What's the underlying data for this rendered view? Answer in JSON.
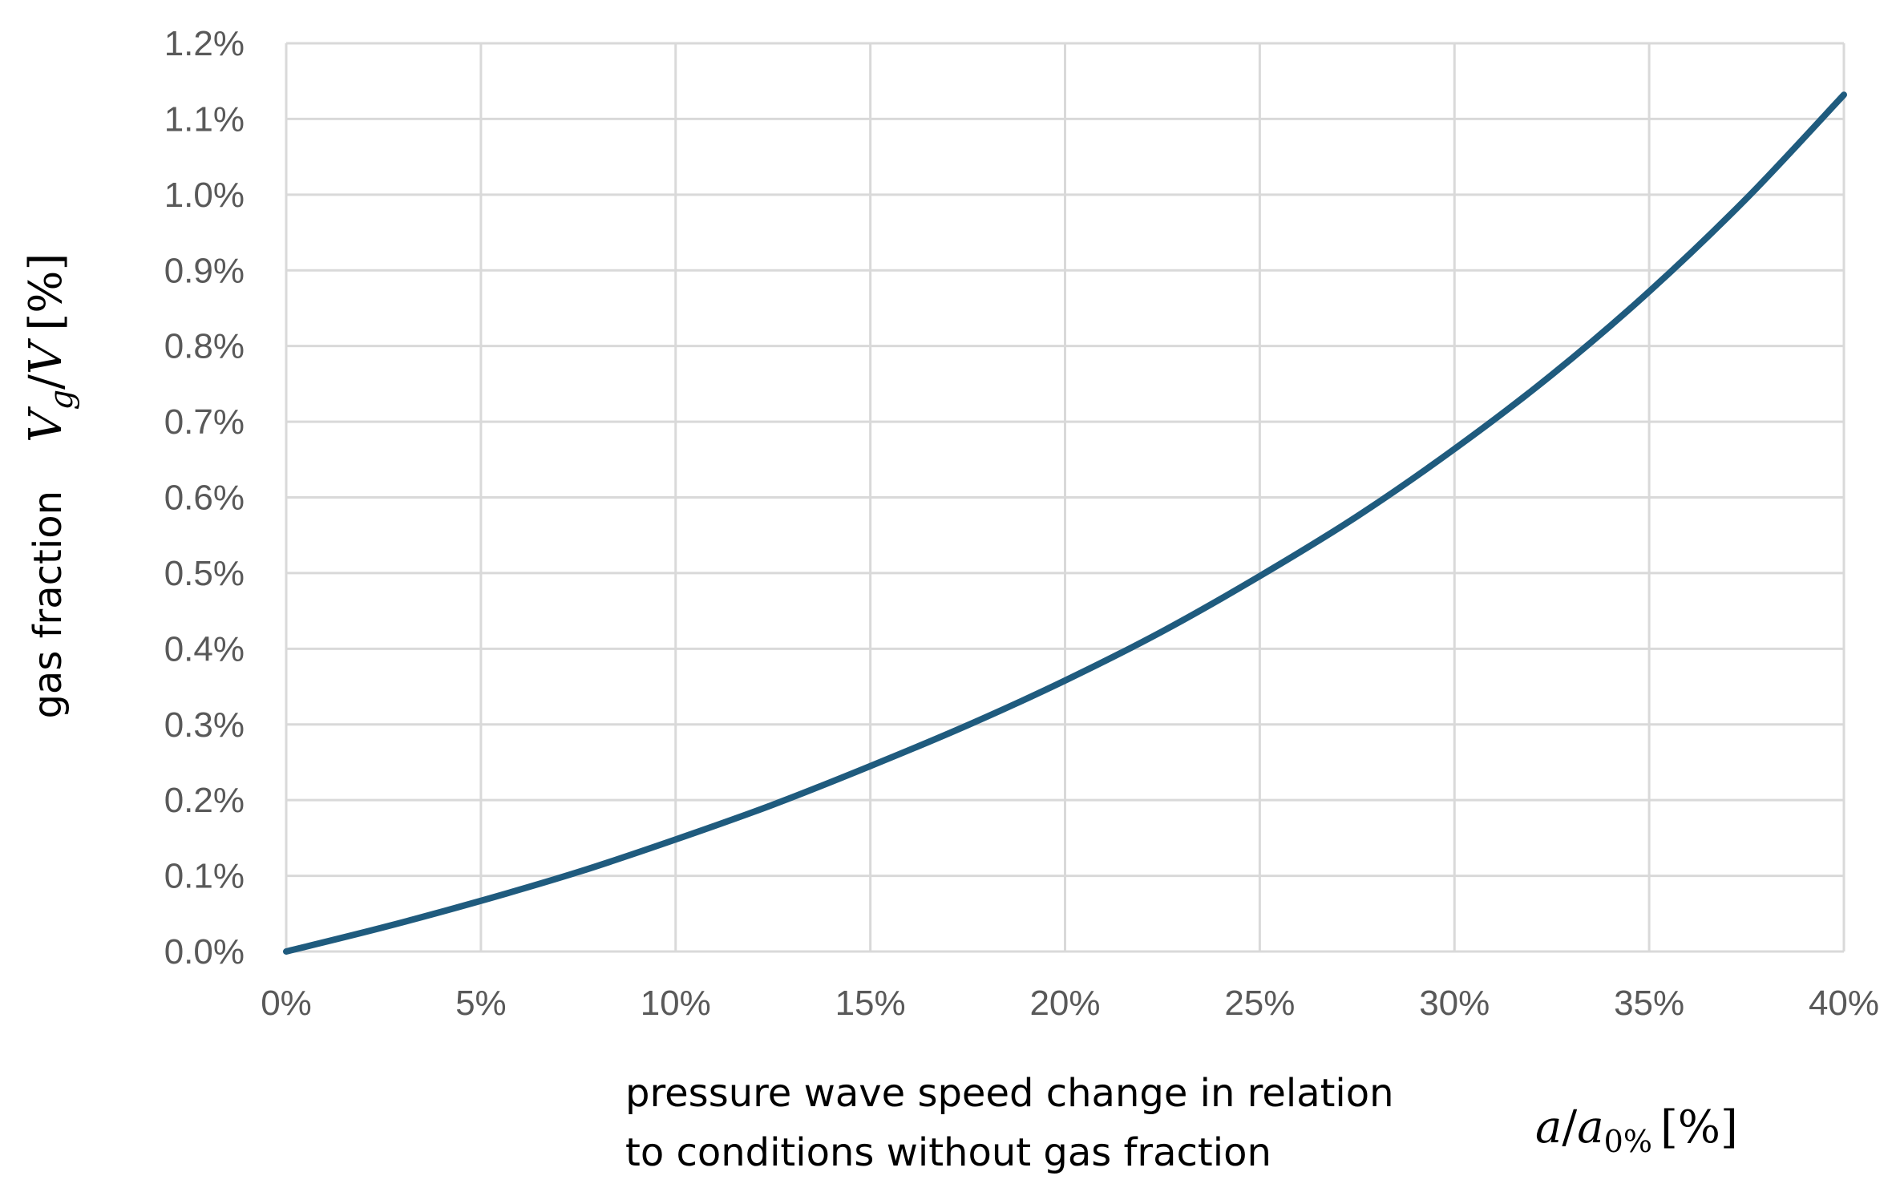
{
  "chart_data": {
    "type": "line",
    "title": "",
    "xlabel": {
      "line1": "pressure wave speed change in relation",
      "line2": "to conditions without gas fraction",
      "symbol": {
        "a": "a",
        "slash": "/",
        "a0": "a",
        "sub": "0%",
        "unit": "[%]"
      }
    },
    "ylabel": {
      "text": "gas fraction",
      "symbol": {
        "v": "V",
        "sub": "g",
        "slash": "/",
        "V": "V",
        "unit": "[%]"
      }
    },
    "xlim": [
      0,
      40
    ],
    "ylim": [
      0,
      1.2
    ],
    "x_ticks": [
      "0%",
      "5%",
      "10%",
      "15%",
      "20%",
      "25%",
      "30%",
      "35%",
      "40%"
    ],
    "y_ticks": [
      "0.0%",
      "0.1%",
      "0.2%",
      "0.3%",
      "0.4%",
      "0.5%",
      "0.6%",
      "0.7%",
      "0.8%",
      "0.9%",
      "1.0%",
      "1.1%",
      "1.2%"
    ],
    "grid": true,
    "legend": "none",
    "series": [
      {
        "name": "gas fraction",
        "color": "#1f5b7e",
        "x": [
          0,
          2.5,
          5,
          7.5,
          10,
          12.5,
          15,
          17.5,
          20,
          22.5,
          25,
          27.5,
          30,
          32.5,
          35,
          37.5,
          40
        ],
        "y": [
          0,
          0.032,
          0.067,
          0.105,
          0.148,
          0.194,
          0.245,
          0.299,
          0.358,
          0.423,
          0.496,
          0.575,
          0.664,
          0.762,
          0.872,
          0.995,
          1.132
        ]
      }
    ]
  }
}
